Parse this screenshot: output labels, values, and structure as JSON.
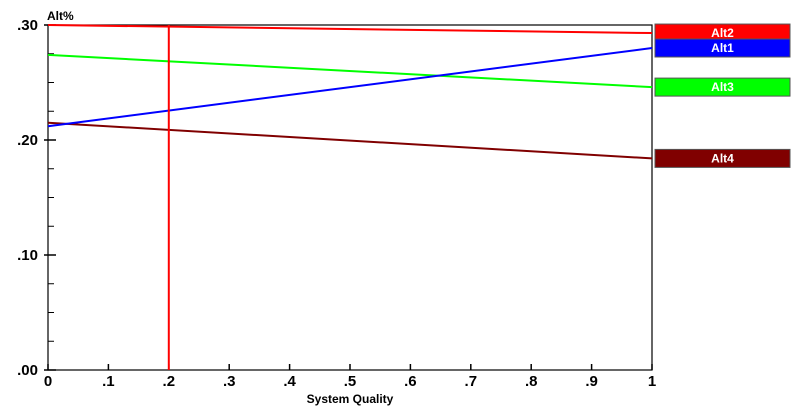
{
  "chart_data": {
    "type": "line",
    "title": "",
    "xlabel": "System Quality",
    "ylabel": "Alt%",
    "xlim": [
      0,
      1
    ],
    "ylim": [
      0,
      0.3
    ],
    "x_ticks": [
      0,
      0.1,
      0.2,
      0.3,
      0.4,
      0.5,
      0.6,
      0.7,
      0.8,
      0.9,
      1
    ],
    "x_tick_labels": [
      "0",
      ".1",
      ".2",
      ".3",
      ".4",
      ".5",
      ".6",
      ".7",
      ".8",
      ".9",
      "1"
    ],
    "y_ticks": [
      0,
      0.1,
      0.2,
      0.3
    ],
    "y_tick_labels": [
      ".00",
      ".10",
      ".20",
      ".30"
    ],
    "x": [
      0,
      1
    ],
    "series": [
      {
        "name": "Alt2",
        "color": "#ff0000",
        "values": [
          0.3,
          0.293
        ]
      },
      {
        "name": "Alt1",
        "color": "#0000ff",
        "values": [
          0.212,
          0.28
        ]
      },
      {
        "name": "Alt3",
        "color": "#00ff00",
        "values": [
          0.274,
          0.246
        ]
      },
      {
        "name": "Alt4",
        "color": "#800000",
        "values": [
          0.215,
          0.184
        ]
      }
    ],
    "reference_line": {
      "x": 0.2,
      "color": "#ff0000"
    },
    "grid": false,
    "legend_placement": "right"
  }
}
